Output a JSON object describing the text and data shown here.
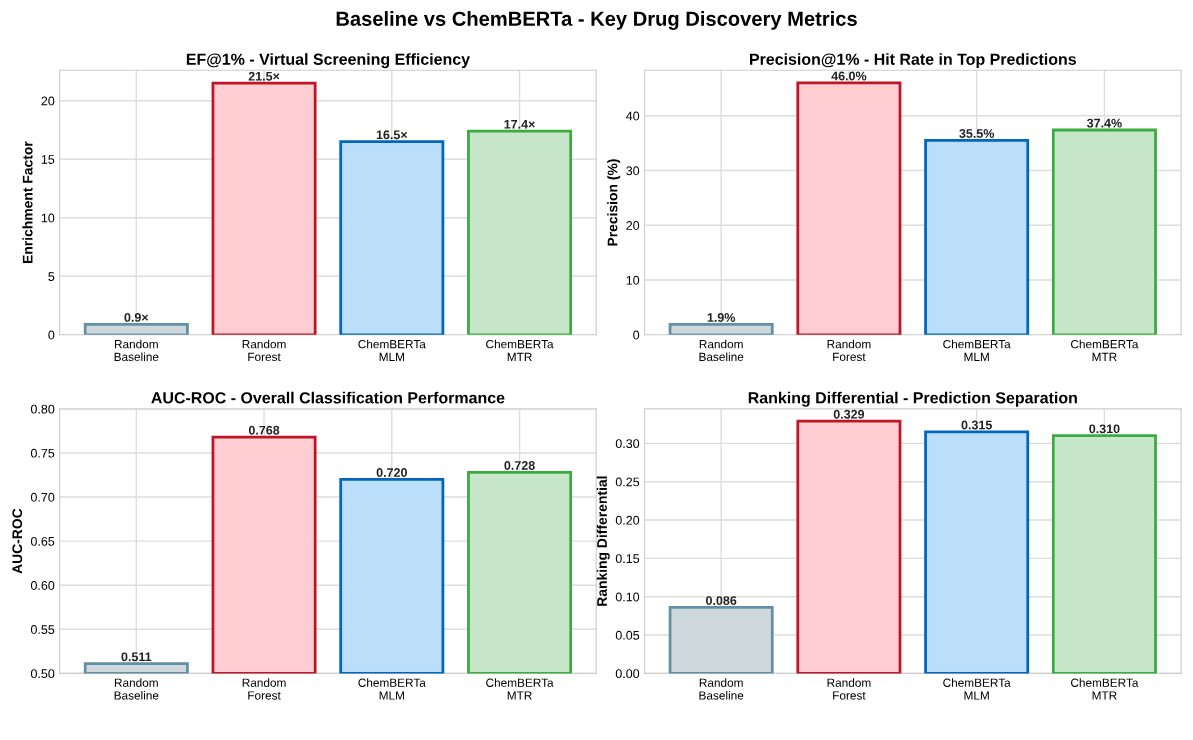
{
  "chart_data": [
    {
      "type": "bar",
      "title": "Baseline vs ChemBERTa - Key Drug Discovery Metrics",
      "subtitle": "EF@1% - Virtual Screening Efficiency",
      "ylabel": "Enrichment Factor",
      "categories": [
        "Random\nBaseline",
        "Random\nForest",
        "ChemBERTa\nMLM",
        "ChemBERTa\nMTR"
      ],
      "values": [
        0.9,
        21.5,
        16.5,
        17.4
      ],
      "value_labels": [
        "0.9×",
        "21.5×",
        "16.5×",
        "17.4×"
      ],
      "colors": [
        "#cfd8dc",
        "#ffcdd2",
        "#bbdefb",
        "#c8e6c9"
      ],
      "ylim": [
        0,
        22.6
      ],
      "yticks": [
        0,
        5,
        10,
        15,
        20
      ],
      "grid": true
    },
    {
      "type": "bar",
      "subtitle": "Precision@1% - Hit Rate in Top Predictions",
      "ylabel": "Precision (%)",
      "categories": [
        "Random\nBaseline",
        "Random\nForest",
        "ChemBERTa\nMLM",
        "ChemBERTa\nMTR"
      ],
      "values": [
        1.9,
        46.0,
        35.5,
        37.4
      ],
      "value_labels": [
        "1.9%",
        "46.0%",
        "35.5%",
        "37.4%"
      ],
      "colors": [
        "#cfd8dc",
        "#ffcdd2",
        "#bbdefb",
        "#c8e6c9"
      ],
      "ylim": [
        0,
        48.3
      ],
      "yticks": [
        0,
        10,
        20,
        30,
        40
      ],
      "grid": true
    },
    {
      "type": "bar",
      "subtitle": "AUC-ROC - Overall Classification Performance",
      "ylabel": "AUC-ROC",
      "categories": [
        "Random\nBaseline",
        "Random\nForest",
        "ChemBERTa\nMLM",
        "ChemBERTa\nMTR"
      ],
      "values": [
        0.511,
        0.768,
        0.72,
        0.728
      ],
      "value_labels": [
        "0.511",
        "0.768",
        "0.720",
        "0.728"
      ],
      "colors": [
        "#cfd8dc",
        "#ffcdd2",
        "#bbdefb",
        "#c8e6c9"
      ],
      "ylim": [
        0.5,
        0.8
      ],
      "yticks": [
        {
          "value": 0.5,
          "label": "0.50"
        },
        0.55,
        {
          "value": 0.6,
          "label": "0.60"
        },
        0.65,
        {
          "value": 0.7,
          "label": "0.70"
        },
        0.75,
        {
          "value": 0.8,
          "label": "0.80"
        }
      ],
      "grid": true
    },
    {
      "type": "bar",
      "subtitle": "Ranking Differential - Prediction Separation",
      "ylabel": "Ranking Differential",
      "categories": [
        "Random\nBaseline",
        "Random\nForest",
        "ChemBERTa\nMLM",
        "ChemBERTa\nMTR"
      ],
      "values": [
        0.086,
        0.329,
        0.315,
        0.31
      ],
      "value_labels": [
        "0.086",
        "0.329",
        "0.315",
        "0.310"
      ],
      "colors": [
        "#cfd8dc",
        "#ffcdd2",
        "#bbdefb",
        "#c8e6c9"
      ],
      "ylim": [
        0,
        0.345
      ],
      "yticks": [
        {
          "value": 0,
          "label": "0.00"
        },
        0.05,
        {
          "value": 0.1,
          "label": "0.10"
        },
        0.15,
        {
          "value": 0.2,
          "label": "0.20"
        },
        0.25,
        {
          "value": 0.3,
          "label": "0.30"
        }
      ],
      "grid": true
    }
  ]
}
